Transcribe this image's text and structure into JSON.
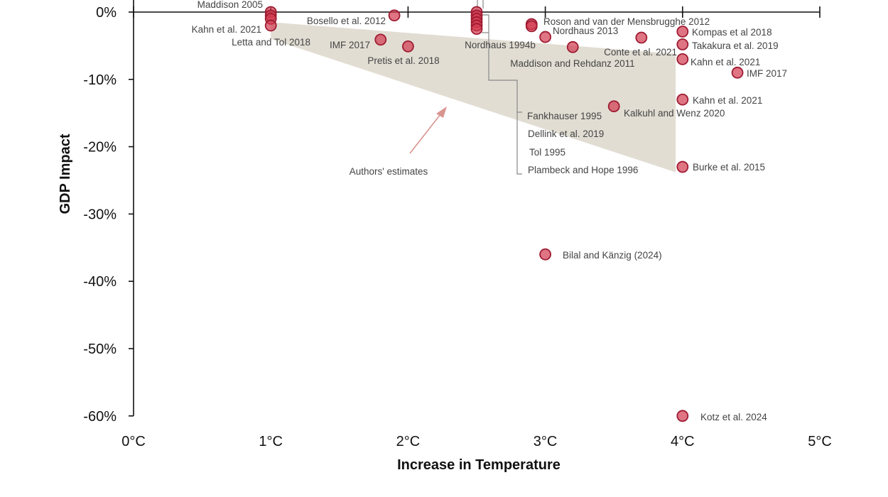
{
  "chart_data": {
    "type": "scatter",
    "title": "",
    "xlabel": "Increase in Temperature",
    "ylabel": "GDP Impact",
    "xlim": [
      0,
      5
    ],
    "ylim": [
      -60,
      0
    ],
    "x_ticks": [
      "0°C",
      "1°C",
      "2°C",
      "3°C",
      "4°C",
      "5°C"
    ],
    "y_ticks": [
      "0%",
      "-10%",
      "-20%",
      "-30%",
      "-40%",
      "-50%",
      "-60%"
    ],
    "grid": false,
    "colors": {
      "point_fill": "#d2394f",
      "point_stroke": "#9e1b32",
      "band": "#e2ddd3",
      "arrow": "#d99590",
      "text": "#444444"
    },
    "points": [
      {
        "x": 1.0,
        "y": 0.0,
        "label": "Maddison 2005"
      },
      {
        "x": 1.0,
        "y": -0.5,
        "label": ""
      },
      {
        "x": 1.0,
        "y": -1.0,
        "label": "Letta and Tol 2018"
      },
      {
        "x": 1.0,
        "y": -2.0,
        "label": "Kahn et al. 2021"
      },
      {
        "x": 1.9,
        "y": -0.5,
        "label": "Bosello et al. 2012"
      },
      {
        "x": 1.8,
        "y": -4.1,
        "label": "IMF 2017"
      },
      {
        "x": 2.0,
        "y": -5.1,
        "label": "Pretis et al. 2018"
      },
      {
        "x": 2.5,
        "y": 0.0,
        "label": "Nordhaus 1994b"
      },
      {
        "x": 2.5,
        "y": -0.5,
        "label": "Fankhauser 1995"
      },
      {
        "x": 2.5,
        "y": -1.0,
        "label": "Dellink et al. 2019"
      },
      {
        "x": 2.5,
        "y": -1.5,
        "label": "Tol 1995"
      },
      {
        "x": 2.5,
        "y": -2.0,
        "label": "Plambeck and Hope 1996"
      },
      {
        "x": 2.5,
        "y": -2.5,
        "label": ""
      },
      {
        "x": 2.9,
        "y": -1.8,
        "label": "Roson and van der Mensbrugghe 2012"
      },
      {
        "x": 2.9,
        "y": -2.1,
        "label": ""
      },
      {
        "x": 3.0,
        "y": -3.7,
        "label": "Nordhaus 2013"
      },
      {
        "x": 3.2,
        "y": -5.2,
        "label": "Maddison and Rehdanz 2011"
      },
      {
        "x": 3.7,
        "y": -3.8,
        "label": "Conte et al. 2021"
      },
      {
        "x": 4.0,
        "y": -2.9,
        "label": "Kompas et al 2018"
      },
      {
        "x": 4.0,
        "y": -4.8,
        "label": "Takakura et al. 2019"
      },
      {
        "x": 4.0,
        "y": -7.0,
        "label": "Kahn et al. 2021"
      },
      {
        "x": 4.4,
        "y": -9.0,
        "label": "IMF 2017"
      },
      {
        "x": 4.0,
        "y": -13.0,
        "label": "Kahn et al. 2021"
      },
      {
        "x": 3.5,
        "y": -14.0,
        "label": "Kalkuhl and Wenz 2020"
      },
      {
        "x": 4.0,
        "y": -23.0,
        "label": "Burke et al. 2015"
      },
      {
        "x": 3.0,
        "y": -36.0,
        "label": "Bilal and Känzig (2024)"
      },
      {
        "x": 4.0,
        "y": -60.0,
        "label": "Kotz et al. 2024"
      }
    ],
    "authors_estimates": {
      "label": "Authors' estimates",
      "polygon": [
        [
          1.0,
          -1.5
        ],
        [
          3.95,
          -6.2
        ],
        [
          3.95,
          -23.8
        ],
        [
          1.0,
          -4.0
        ]
      ]
    }
  }
}
